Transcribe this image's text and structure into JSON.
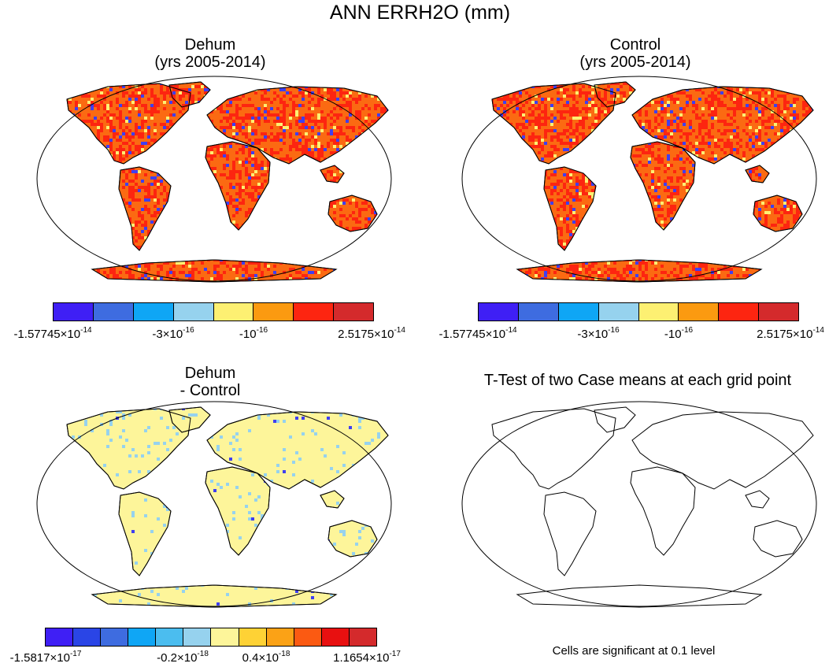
{
  "title": "ANN ERRH2O (mm)",
  "panels": {
    "dehum": {
      "title_line1": "Dehum",
      "title_line2": "(yrs 2005-2014)"
    },
    "control": {
      "title_line1": "Control",
      "title_line2": "(yrs 2005-2014)"
    },
    "diff": {
      "title_line1": "Dehum",
      "title_line2": "- Control"
    },
    "ttest": {
      "title": "T-Test of two Case means at each grid point",
      "note": "Cells are significant at 0.1 level"
    }
  },
  "colorbar_top": {
    "colors": [
      "#3f1ff5",
      "#3e6ce0",
      "#0fa6f5",
      "#96d2ee",
      "#fdf072",
      "#fb9a10",
      "#fd2510",
      "#d42a2c"
    ],
    "ticks": [
      {
        "mant": "-1.57745×10",
        "exp": "-14"
      },
      {
        "mant": "-3×10",
        "exp": "-16"
      },
      {
        "mant": "-10",
        "exp": "-16"
      },
      {
        "mant": "2.5175×10",
        "exp": "-14"
      }
    ]
  },
  "colorbar_diff": {
    "colors": [
      "#3f1ff5",
      "#2a45e6",
      "#3e6ce0",
      "#0fa6f5",
      "#4bbdef",
      "#96d2ee",
      "#fdf59a",
      "#fed235",
      "#fba216",
      "#fb5a12",
      "#e81010",
      "#d42a2c"
    ],
    "ticks": [
      {
        "mant": "-1.5817×10",
        "exp": "-17"
      },
      {
        "mant": "-0.2×10",
        "exp": "-18"
      },
      {
        "mant": "0.4×10",
        "exp": "-18"
      },
      {
        "mant": "1.1654×10",
        "exp": "-17"
      }
    ]
  },
  "map_colors": {
    "land_main": "#fb6a12",
    "land_alt": "#fd2510",
    "land_yellow": "#fdf072",
    "blue_patch": "#3f3ff0",
    "diff_land": "#fdf59a",
    "diff_speckle": "#96d2ee"
  }
}
